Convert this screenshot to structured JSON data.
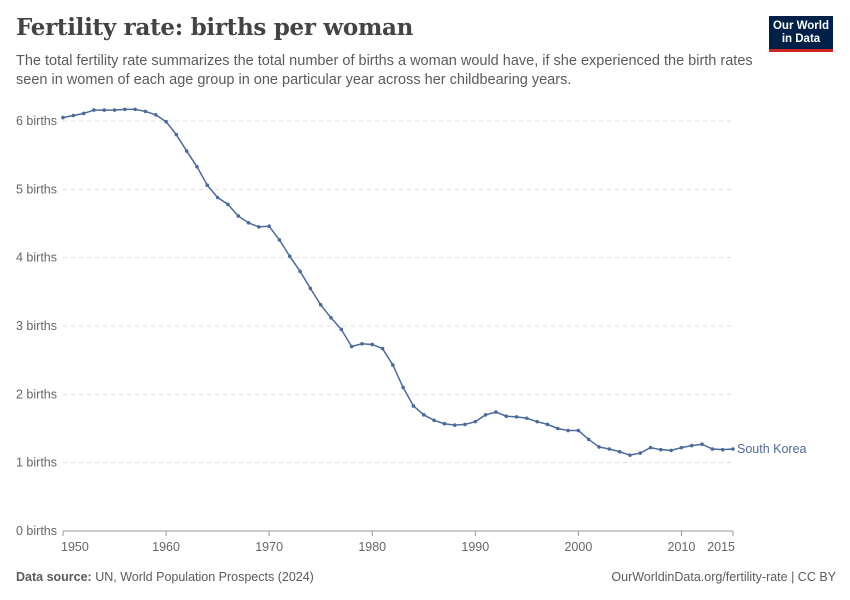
{
  "header": {
    "title": "Fertility rate: births per woman",
    "subtitle": "The total fertility rate summarizes the total number of births a woman would have, if she experienced the birth rates seen in women of each age group in one particular year across her childbearing years.",
    "logo": "Our World in Data"
  },
  "footer": {
    "source_label": "Data source:",
    "source": "UN, World Population Prospects (2024)",
    "right": "OurWorldinData.org/fertility-rate | CC BY"
  },
  "chart_data": {
    "type": "line",
    "title": "Fertility rate: births per woman",
    "xlabel": "",
    "ylabel": "",
    "xlim": [
      1950,
      2015
    ],
    "ylim": [
      0,
      6
    ],
    "grid": "horizontal dashed",
    "legend": "line-end label",
    "yticks": [
      {
        "v": 0,
        "label": "0 births"
      },
      {
        "v": 1,
        "label": "1 births"
      },
      {
        "v": 2,
        "label": "2 births"
      },
      {
        "v": 3,
        "label": "3 births"
      },
      {
        "v": 4,
        "label": "4 births"
      },
      {
        "v": 5,
        "label": "5 births"
      },
      {
        "v": 6,
        "label": "6 births"
      }
    ],
    "xticks": [
      {
        "v": 1950,
        "label": "1950"
      },
      {
        "v": 1960,
        "label": "1960"
      },
      {
        "v": 1970,
        "label": "1970"
      },
      {
        "v": 1980,
        "label": "1980"
      },
      {
        "v": 1990,
        "label": "1990"
      },
      {
        "v": 2000,
        "label": "2000"
      },
      {
        "v": 2010,
        "label": "2010"
      },
      {
        "v": 2015,
        "label": "2015"
      }
    ],
    "series": [
      {
        "name": "South Korea",
        "color": "#4c6a9c",
        "x_start": 1950,
        "values": [
          6.05,
          6.08,
          6.11,
          6.16,
          6.16,
          6.16,
          6.17,
          6.17,
          6.14,
          6.09,
          5.99,
          5.8,
          5.56,
          5.33,
          5.06,
          4.88,
          4.78,
          4.61,
          4.51,
          4.45,
          4.46,
          4.26,
          4.02,
          3.8,
          3.55,
          3.31,
          3.12,
          2.95,
          2.7,
          2.74,
          2.73,
          2.67,
          2.43,
          2.1,
          1.83,
          1.7,
          1.62,
          1.57,
          1.55,
          1.56,
          1.6,
          1.7,
          1.74,
          1.68,
          1.67,
          1.65,
          1.6,
          1.56,
          1.5,
          1.47,
          1.47,
          1.34,
          1.23,
          1.2,
          1.16,
          1.11,
          1.14,
          1.22,
          1.19,
          1.18,
          1.22,
          1.25,
          1.27,
          1.2,
          1.19,
          1.2
        ]
      }
    ]
  }
}
